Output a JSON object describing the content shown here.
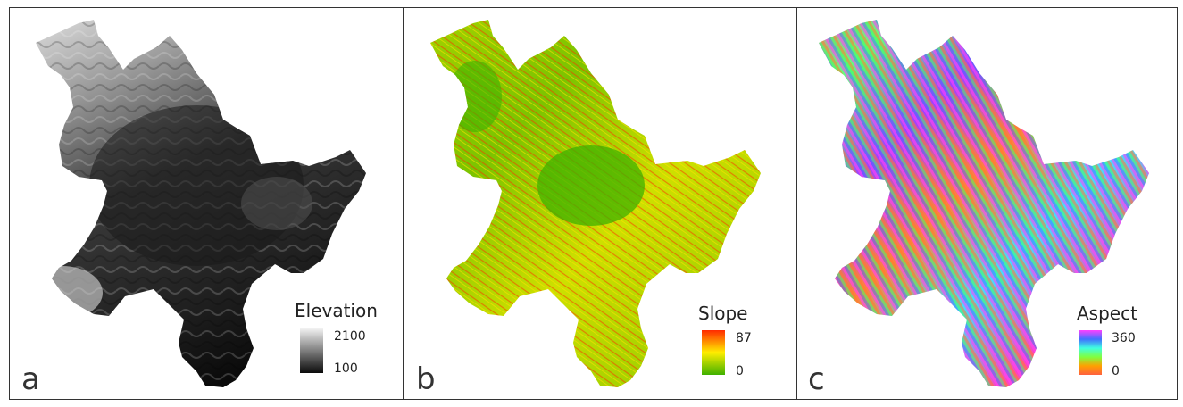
{
  "panels": [
    {
      "letter": "a",
      "legend": {
        "title": "Elevation",
        "max_label": "2100",
        "min_label": "100"
      },
      "colors": {
        "high": "#f2f2f2",
        "low": "#0a0a0a"
      }
    },
    {
      "letter": "b",
      "legend": {
        "title": "Slope",
        "max_label": "87",
        "min_label": "0"
      },
      "colors": {
        "high": "#ff2a00",
        "mid": "#ffee00",
        "low": "#3fb000"
      }
    },
    {
      "letter": "c",
      "legend": {
        "title": "Aspect",
        "max_label": "360",
        "min_label": "0"
      },
      "colors": {
        "c1": "#ff40ff",
        "c2": "#4070ff",
        "c3": "#40ffe0",
        "c4": "#80ff40",
        "c5": "#ffa000",
        "c6": "#ff6040"
      }
    }
  ]
}
